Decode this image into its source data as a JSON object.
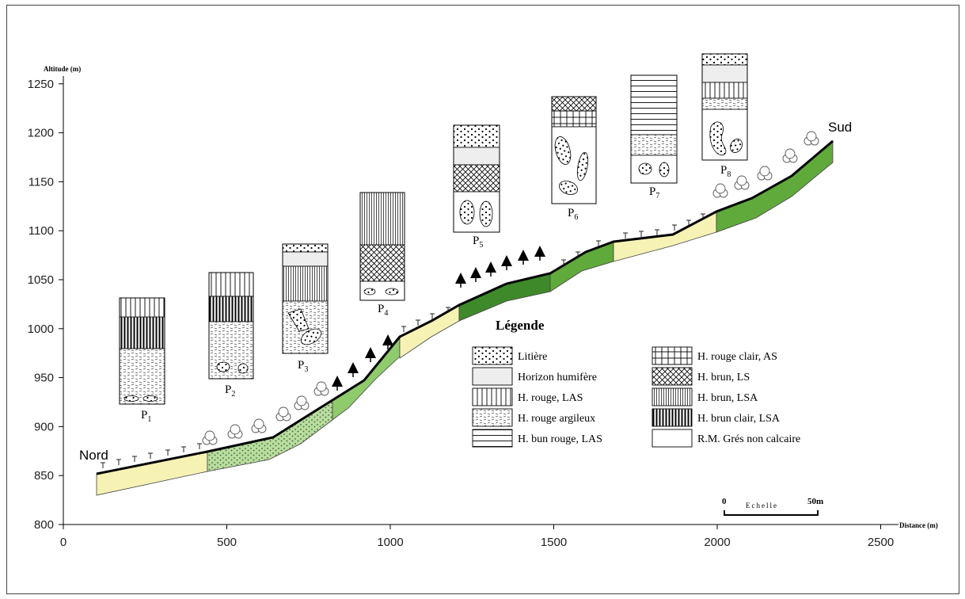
{
  "axes": {
    "y_title": "Altitude (m)",
    "x_title": "Distance (m)",
    "y_ticks": [
      "1250",
      "1200",
      "1150",
      "1100",
      "1050",
      "1000",
      "950",
      "900",
      "850",
      "800"
    ],
    "x_ticks": [
      "0",
      "500",
      "1000",
      "1500",
      "2000",
      "2500"
    ],
    "ylim": [
      800,
      1260
    ],
    "xlim": [
      0,
      2600
    ]
  },
  "slope_labels": {
    "north": "Nord",
    "south": "Sud"
  },
  "profiles": [
    {
      "name": "P",
      "sub": "1",
      "distance": 200
    },
    {
      "name": "P",
      "sub": "2",
      "distance": 520
    },
    {
      "name": "P",
      "sub": "3",
      "distance": 750
    },
    {
      "name": "P",
      "sub": "4",
      "distance": 970
    },
    {
      "name": "P",
      "sub": "5",
      "distance": 1270
    },
    {
      "name": "P",
      "sub": "6",
      "distance": 1550
    },
    {
      "name": "P",
      "sub": "7",
      "distance": 1800
    },
    {
      "name": "P",
      "sub": "8",
      "distance": 2050
    }
  ],
  "legend": {
    "title": "Légende",
    "items": [
      {
        "label": "Litière",
        "pattern": "dots"
      },
      {
        "label": "Horizon humifère",
        "pattern": "grey"
      },
      {
        "label": "H. rouge,  LAS",
        "pattern": "vlines"
      },
      {
        "label": "H. rouge argileux",
        "pattern": "dashes"
      },
      {
        "label": "H. bun rouge, LAS",
        "pattern": "hlines"
      },
      {
        "label": "H. rouge clair, AS",
        "pattern": "grid"
      },
      {
        "label": "H. brun, LS",
        "pattern": "cross"
      },
      {
        "label": "H. brun, LSA",
        "pattern": "fine-vlines"
      },
      {
        "label": "H. brun clair, LSA",
        "pattern": "thick-vlines"
      },
      {
        "label": "R.M.  Grés non calcaire",
        "pattern": "empty"
      }
    ]
  },
  "scale_bar": {
    "start": "0",
    "label": "Echelle",
    "end": "50m"
  },
  "colors": {
    "bedrock": "#f6f2b4",
    "green_light": "#8fca6b",
    "green_mid": "#5faa3a",
    "green_dark": "#3e8a2a",
    "soil_dotted": "#b9dca0",
    "horizon_grey": "#eeeeee"
  }
}
